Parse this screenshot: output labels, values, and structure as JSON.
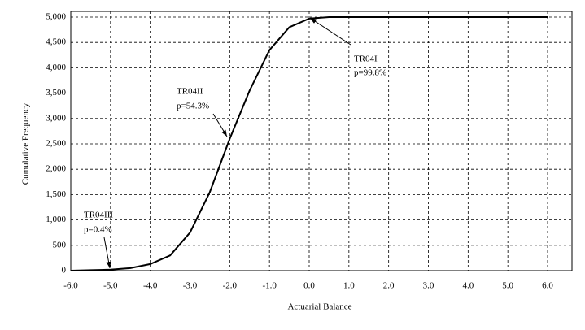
{
  "chart_data": {
    "type": "line",
    "x_label": "Actuarial Balance",
    "y_label": "Cumulative Frequency",
    "x": [
      -6,
      -5.5,
      -5,
      -4.5,
      -4,
      -3.5,
      -3,
      -2.5,
      -2,
      -1.5,
      -1,
      -0.5,
      0,
      0.5,
      1,
      1.5,
      2,
      2.5,
      3,
      3.5,
      4,
      4.5,
      5,
      5.5,
      6
    ],
    "series": [
      {
        "color": "#000000",
        "values": [
          0,
          10,
          20,
          50,
          130,
          300,
          750,
          1550,
          2600,
          3550,
          4350,
          4800,
          4970,
          5000,
          5000,
          5000,
          5000,
          5000,
          5000,
          5000,
          5000,
          5000,
          5000,
          5000,
          5000
        ]
      }
    ],
    "xlim": [
      -6,
      6
    ],
    "ylim": [
      0,
      5000
    ],
    "xticks": [
      {
        "value": -6,
        "label": "-6.0"
      },
      {
        "value": -5,
        "label": "-5.0"
      },
      {
        "value": -4,
        "label": "-4.0"
      },
      {
        "value": -3,
        "label": "-3.0"
      },
      {
        "value": -2,
        "label": "-2.0"
      },
      {
        "value": -1,
        "label": "-1.0"
      },
      {
        "value": 0,
        "label": "0.0"
      },
      {
        "value": 1,
        "label": "1.0"
      },
      {
        "value": 2,
        "label": "2.0"
      },
      {
        "value": 3,
        "label": "3.0"
      },
      {
        "value": 4,
        "label": "4.0"
      },
      {
        "value": 5,
        "label": "5.0"
      },
      {
        "value": 6,
        "label": "6.0"
      }
    ],
    "yticks": [
      0,
      500,
      {
        "value": 1000,
        "label": "1,000"
      },
      {
        "value": 1500,
        "label": "1,500"
      },
      {
        "value": 2000,
        "label": "2,000"
      },
      {
        "value": 2500,
        "label": "2,500"
      },
      {
        "value": 3000,
        "label": "3,000"
      },
      {
        "value": 3500,
        "label": "3,500"
      },
      {
        "value": 4000,
        "label": "4,000"
      },
      {
        "value": 4500,
        "label": "4,500"
      },
      {
        "value": 5000,
        "label": "5,000"
      }
    ],
    "grid": true,
    "annotations": [
      {
        "lines": [
          "TR04III",
          "p=0.4%"
        ]
      },
      {
        "lines": [
          "TR04II",
          "p=54.3%"
        ]
      },
      {
        "lines": [
          "TR04I",
          "p=99.8%"
        ]
      }
    ]
  }
}
